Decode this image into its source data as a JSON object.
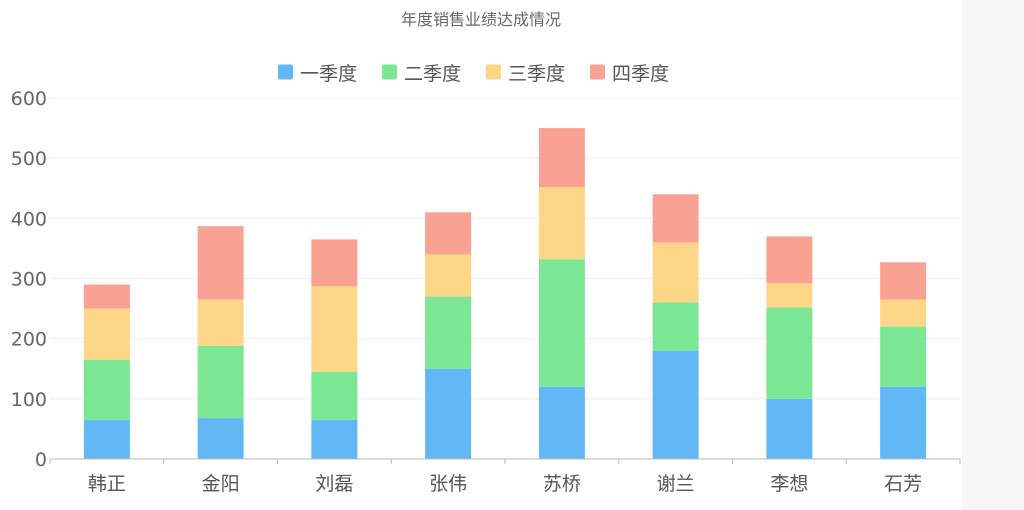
{
  "chart_data": {
    "type": "bar",
    "stacked": true,
    "title": "年度销售业绩达成情况",
    "categories": [
      "韩正",
      "金阳",
      "刘磊",
      "张伟",
      "苏桥",
      "谢兰",
      "李想",
      "石芳"
    ],
    "series": [
      {
        "name": "一季度",
        "color": "#62b7f5",
        "values": [
          65,
          68,
          65,
          150,
          120,
          180,
          100,
          120
        ]
      },
      {
        "name": "二季度",
        "color": "#7be795",
        "values": [
          100,
          120,
          80,
          120,
          212,
          80,
          152,
          100
        ]
      },
      {
        "name": "三季度",
        "color": "#fdd687",
        "values": [
          85,
          77,
          142,
          70,
          120,
          100,
          40,
          45
        ]
      },
      {
        "name": "四季度",
        "color": "#f9a193",
        "values": [
          40,
          122,
          78,
          70,
          98,
          80,
          78,
          62
        ]
      }
    ],
    "y_ticks": [
      "0",
      "100",
      "200",
      "300",
      "400",
      "500",
      "600"
    ],
    "ylim": [
      0,
      600
    ],
    "legend_position": "top-center",
    "grid": true
  }
}
